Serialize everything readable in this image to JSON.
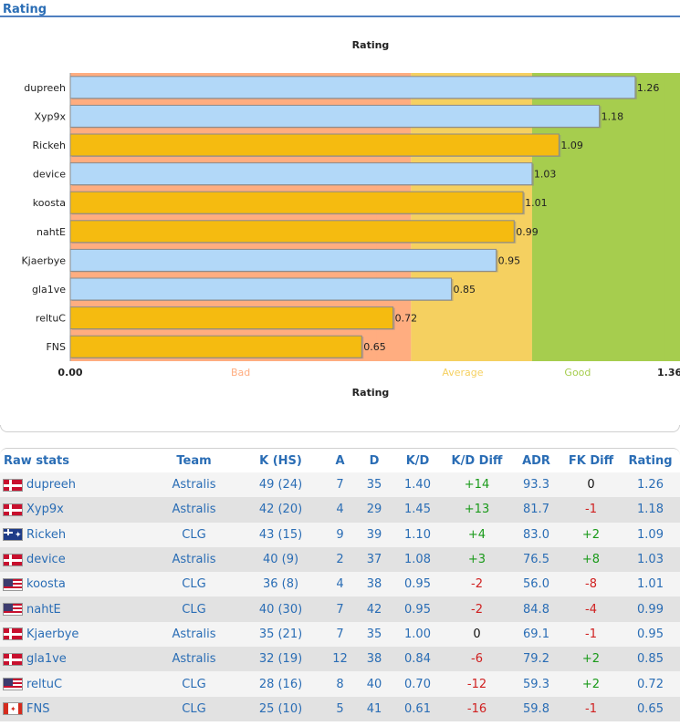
{
  "section": {
    "title": "Rating"
  },
  "chart_data": {
    "type": "bar",
    "orientation": "horizontal",
    "title": "Rating",
    "xlabel": "Rating",
    "xlim": [
      0,
      1.36
    ],
    "x_tick_labels": [
      "0.00",
      "1.36"
    ],
    "zones": [
      {
        "label": "Bad",
        "from": 0,
        "to": 0.76,
        "color": "#ffad80"
      },
      {
        "label": "Average",
        "from": 0.76,
        "to": 1.03,
        "color": "#f5d060"
      },
      {
        "label": "Good",
        "from": 1.03,
        "to": 1.36,
        "color": "#a6cd4e"
      }
    ],
    "categories": [
      "dupreeh",
      "Xyp9x",
      "Rickeh",
      "device",
      "koosta",
      "nahtE",
      "Kjaerbye",
      "gla1ve",
      "reltuC",
      "FNS"
    ],
    "values": [
      1.26,
      1.18,
      1.09,
      1.03,
      1.01,
      0.99,
      0.95,
      0.85,
      0.72,
      0.65
    ],
    "value_labels": [
      "1.26",
      "1.18",
      "1.09",
      "1.03",
      "1.01",
      "0.99",
      "0.95",
      "0.85",
      "0.72",
      "0.65"
    ],
    "bar_colors": [
      "#b2d8f8",
      "#b2d8f8",
      "#f5bb10",
      "#b2d8f8",
      "#f5bb10",
      "#f5bb10",
      "#b2d8f8",
      "#b2d8f8",
      "#f5bb10",
      "#f5bb10"
    ],
    "grid": false,
    "legend": "none"
  },
  "stats": {
    "headers": [
      "Raw stats",
      "Team",
      "K (HS)",
      "A",
      "D",
      "K/D",
      "K/D Diff",
      "ADR",
      "FK Diff",
      "Rating"
    ],
    "rows": [
      {
        "player": "dupreeh",
        "flag": "dk",
        "team": "Astralis",
        "khs": "49 (24)",
        "a": "7",
        "d": "35",
        "kd": "1.40",
        "kd_diff": "+14",
        "adr": "93.3",
        "fk_diff": "0",
        "rating": "1.26"
      },
      {
        "player": "Xyp9x",
        "flag": "dk",
        "team": "Astralis",
        "khs": "42 (20)",
        "a": "4",
        "d": "29",
        "kd": "1.45",
        "kd_diff": "+13",
        "adr": "81.7",
        "fk_diff": "-1",
        "rating": "1.18"
      },
      {
        "player": "Rickeh",
        "flag": "au",
        "team": "CLG",
        "khs": "43 (15)",
        "a": "9",
        "d": "39",
        "kd": "1.10",
        "kd_diff": "+4",
        "adr": "83.0",
        "fk_diff": "+2",
        "rating": "1.09"
      },
      {
        "player": "device",
        "flag": "dk",
        "team": "Astralis",
        "khs": "40 (9)",
        "a": "2",
        "d": "37",
        "kd": "1.08",
        "kd_diff": "+3",
        "adr": "76.5",
        "fk_diff": "+8",
        "rating": "1.03"
      },
      {
        "player": "koosta",
        "flag": "us",
        "team": "CLG",
        "khs": "36 (8)",
        "a": "4",
        "d": "38",
        "kd": "0.95",
        "kd_diff": "-2",
        "adr": "56.0",
        "fk_diff": "-8",
        "rating": "1.01"
      },
      {
        "player": "nahtE",
        "flag": "us",
        "team": "CLG",
        "khs": "40 (30)",
        "a": "7",
        "d": "42",
        "kd": "0.95",
        "kd_diff": "-2",
        "adr": "84.8",
        "fk_diff": "-4",
        "rating": "0.99"
      },
      {
        "player": "Kjaerbye",
        "flag": "dk",
        "team": "Astralis",
        "khs": "35 (21)",
        "a": "7",
        "d": "35",
        "kd": "1.00",
        "kd_diff": "0",
        "adr": "69.1",
        "fk_diff": "-1",
        "rating": "0.95"
      },
      {
        "player": "gla1ve",
        "flag": "dk",
        "team": "Astralis",
        "khs": "32 (19)",
        "a": "12",
        "d": "38",
        "kd": "0.84",
        "kd_diff": "-6",
        "adr": "79.2",
        "fk_diff": "+2",
        "rating": "0.85"
      },
      {
        "player": "reltuC",
        "flag": "us",
        "team": "CLG",
        "khs": "28 (16)",
        "a": "8",
        "d": "40",
        "kd": "0.70",
        "kd_diff": "-12",
        "adr": "59.3",
        "fk_diff": "+2",
        "rating": "0.72"
      },
      {
        "player": "FNS",
        "flag": "ca",
        "team": "CLG",
        "khs": "25 (10)",
        "a": "5",
        "d": "41",
        "kd": "0.61",
        "kd_diff": "-16",
        "adr": "59.8",
        "fk_diff": "-1",
        "rating": "0.65"
      }
    ]
  }
}
